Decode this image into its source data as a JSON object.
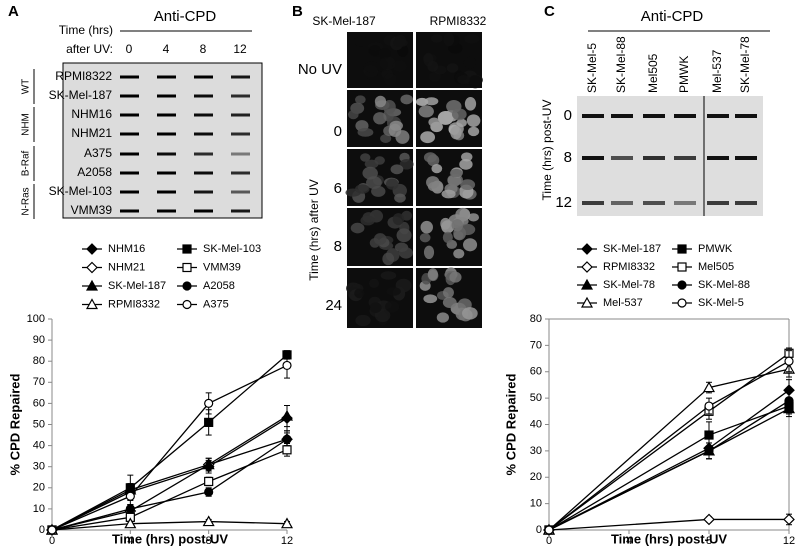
{
  "panel_labels": [
    "A",
    "B",
    "C"
  ],
  "blot_a": {
    "title": "Anti-CPD",
    "time_label_1": "Time (hrs)",
    "time_label_2": "after UV:",
    "times": [
      "0",
      "4",
      "8",
      "12"
    ],
    "rows": [
      "RPMI8322",
      "SK-Mel-187",
      "NHM16",
      "NHM21",
      "A375",
      "A2058",
      "SK-Mel-103",
      "VMM39"
    ],
    "groups": [
      "WT",
      "NHM",
      "B-Raf",
      "N-Ras"
    ]
  },
  "images_b": {
    "columns": [
      "SK-Mel-187",
      "RPMI8332"
    ],
    "rows": [
      "No UV",
      "0",
      "6",
      "8",
      "24"
    ],
    "axis_label": "Time (hrs) after UV"
  },
  "blot_c": {
    "title": "Anti-CPD",
    "samples": [
      "SK-Mel-5",
      "SK-Mel-88",
      "Mel505",
      "PMWK",
      "Mel-537",
      "SK-Mel-78"
    ],
    "rows": [
      "0",
      "8",
      "12"
    ],
    "axis_label": "Time (hrs) post-UV"
  },
  "chart_data": [
    {
      "type": "line",
      "xlabel": "Time (hrs) post-UV",
      "ylabel": "% CPD Repaired",
      "x": [
        0,
        4,
        8,
        12
      ],
      "xlim": [
        0,
        12
      ],
      "xticks": [
        0,
        4,
        8,
        12
      ],
      "ylim": [
        0,
        100
      ],
      "yticks": [
        0,
        10,
        20,
        30,
        40,
        50,
        60,
        70,
        80,
        90,
        100
      ],
      "series": [
        {
          "name": "NHM16",
          "color": "#000000",
          "marker": "diamond",
          "filled": true,
          "values": [
            0,
            18,
            30,
            53
          ],
          "errors": [
            0,
            3,
            3,
            6
          ]
        },
        {
          "name": "SK-Mel-103",
          "color": "#000000",
          "marker": "square",
          "filled": true,
          "values": [
            0,
            20,
            51,
            83
          ],
          "errors": [
            0,
            6,
            6,
            2
          ]
        },
        {
          "name": "NHM21",
          "color": "#000000",
          "marker": "diamond",
          "filled": false,
          "values": [
            0,
            9,
            31,
            43
          ],
          "errors": [
            0,
            3,
            3,
            4
          ]
        },
        {
          "name": "VMM39",
          "color": "#000000",
          "marker": "square",
          "filled": false,
          "values": [
            0,
            6,
            23,
            38
          ],
          "errors": [
            0,
            2,
            2,
            3
          ]
        },
        {
          "name": "SK-Mel-187",
          "color": "#000000",
          "marker": "triangle",
          "filled": true,
          "values": [
            0,
            19,
            31,
            54
          ],
          "errors": [
            0,
            3,
            3,
            5
          ]
        },
        {
          "name": "A2058",
          "color": "#000000",
          "marker": "circle",
          "filled": true,
          "values": [
            0,
            10,
            18,
            43
          ],
          "errors": [
            0,
            2,
            2,
            3
          ]
        },
        {
          "name": "RPMI8332",
          "color": "#000000",
          "marker": "triangle",
          "filled": false,
          "values": [
            0,
            3,
            4,
            3
          ],
          "errors": [
            0,
            1,
            1,
            1
          ]
        },
        {
          "name": "A375",
          "color": "#000000",
          "marker": "circle",
          "filled": false,
          "values": [
            0,
            16,
            60,
            78
          ],
          "errors": [
            0,
            4,
            5,
            6
          ]
        }
      ]
    },
    {
      "type": "line",
      "xlabel": "Time (hrs) post-UV",
      "ylabel": "% CPD Repaired",
      "x": [
        0,
        8,
        12
      ],
      "xlim": [
        0,
        12
      ],
      "xticks": [
        0,
        4,
        8,
        12
      ],
      "ylim": [
        0,
        80
      ],
      "yticks": [
        0,
        10,
        20,
        30,
        40,
        50,
        60,
        70,
        80
      ],
      "series": [
        {
          "name": "SK-Mel-187",
          "color": "#000000",
          "marker": "diamond",
          "filled": true,
          "values": [
            0,
            31,
            53
          ],
          "errors": [
            0,
            4,
            4
          ]
        },
        {
          "name": "PMWK",
          "color": "#000000",
          "marker": "square",
          "filled": true,
          "values": [
            0,
            36,
            47
          ],
          "errors": [
            0,
            5,
            3
          ]
        },
        {
          "name": "RPMI8332",
          "color": "#000000",
          "marker": "diamond",
          "filled": false,
          "values": [
            0,
            4,
            4
          ],
          "errors": [
            0,
            1,
            2
          ]
        },
        {
          "name": "Mel505",
          "color": "#000000",
          "marker": "square",
          "filled": false,
          "values": [
            0,
            45,
            67
          ],
          "errors": [
            0,
            3,
            2
          ]
        },
        {
          "name": "SK-Mel-78",
          "color": "#000000",
          "marker": "triangle",
          "filled": true,
          "values": [
            0,
            30,
            46
          ],
          "errors": [
            0,
            3,
            3
          ]
        },
        {
          "name": "SK-Mel-88",
          "color": "#000000",
          "marker": "circle",
          "filled": true,
          "values": [
            0,
            30,
            49
          ],
          "errors": [
            0,
            3,
            4
          ]
        },
        {
          "name": "Mel-537",
          "color": "#000000",
          "marker": "triangle",
          "filled": false,
          "values": [
            0,
            54,
            61
          ],
          "errors": [
            0,
            2,
            3
          ]
        },
        {
          "name": "SK-Mel-5",
          "color": "#000000",
          "marker": "circle",
          "filled": false,
          "values": [
            0,
            47,
            64
          ],
          "errors": [
            0,
            3,
            4
          ]
        }
      ]
    }
  ]
}
